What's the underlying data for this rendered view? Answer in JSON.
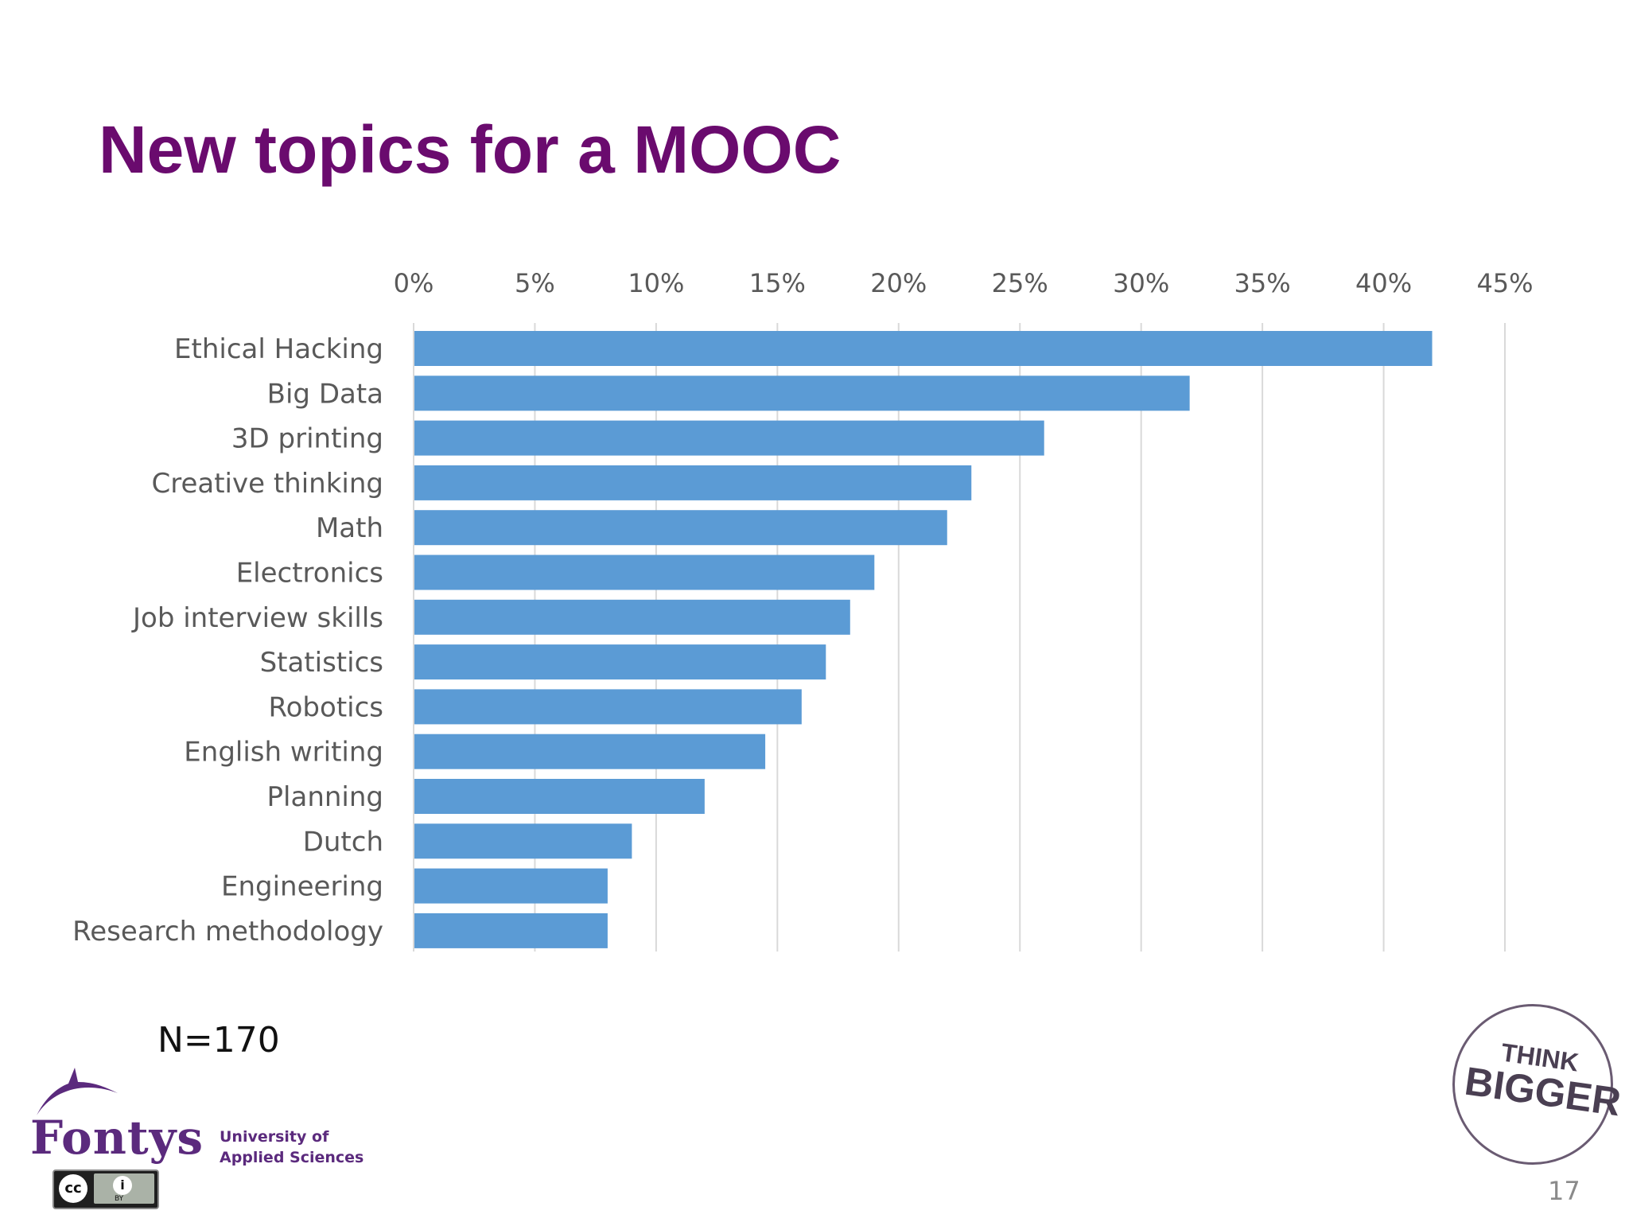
{
  "slide": {
    "title": "New topics for a MOOC",
    "sample_size": "N=170",
    "page_number": "17"
  },
  "logo": {
    "name": "Fontys",
    "subtitle_line1": "University of",
    "subtitle_line2": "Applied Sciences",
    "license_text": "BY",
    "icon": "fontys-dolphin-icon"
  },
  "badge": {
    "line1": "THINK",
    "line2": "BIGGER"
  },
  "colors": {
    "title": "#6a0b6e",
    "bar": "#5b9bd5",
    "grid": "#d9d9d9",
    "axis_text": "#595959"
  },
  "chart_data": {
    "type": "bar",
    "orientation": "horizontal",
    "title": "",
    "xlabel": "",
    "ylabel": "",
    "categories": [
      "Ethical Hacking",
      "Big Data",
      "3D printing",
      "Creative thinking",
      "Math",
      "Electronics",
      "Job interview skills",
      "Statistics",
      "Robotics",
      "English writing",
      "Planning",
      "Dutch",
      "Engineering",
      "Research methodology"
    ],
    "values": [
      42,
      32,
      26,
      23,
      22,
      19,
      18,
      17,
      16,
      14.5,
      12,
      9,
      8,
      8
    ],
    "xlim": [
      0,
      45
    ],
    "ticks": [
      0,
      5,
      10,
      15,
      20,
      25,
      30,
      35,
      40,
      45
    ],
    "tick_labels": [
      "0%",
      "5%",
      "10%",
      "15%",
      "20%",
      "25%",
      "30%",
      "35%",
      "40%",
      "45%"
    ],
    "axis_position": "top",
    "grid": true,
    "legend": false
  }
}
